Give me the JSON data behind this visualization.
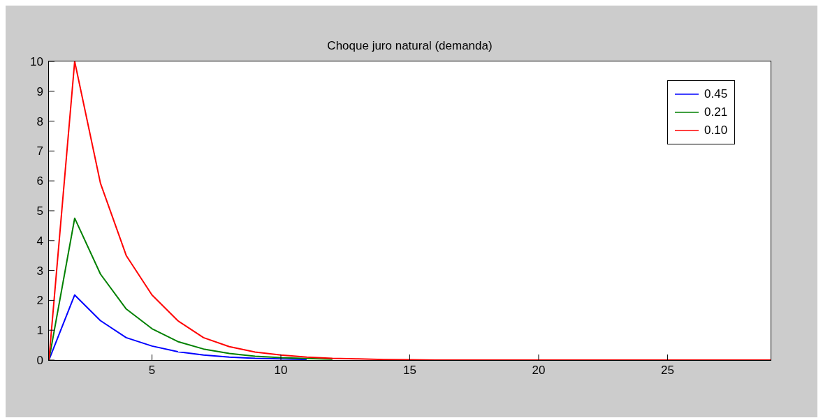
{
  "chart_data": {
    "type": "line",
    "title": "Choque juro natural (demanda)",
    "x": [
      1,
      2,
      3,
      4,
      5,
      6,
      7,
      8,
      9,
      10,
      11,
      12,
      13,
      14,
      15,
      16,
      17,
      18,
      19,
      20,
      21,
      22,
      23,
      24,
      25,
      26,
      27,
      28,
      29
    ],
    "series": [
      {
        "name": "0.45",
        "color": "#0000ff",
        "values": [
          0,
          2.18,
          1.32,
          0.75,
          0.47,
          0.28,
          0.17,
          0.1,
          0.06,
          0.04,
          0.02,
          null,
          null,
          null,
          null,
          null,
          null,
          null,
          null,
          null,
          null,
          null,
          null,
          null,
          null,
          null,
          null,
          null,
          null
        ]
      },
      {
        "name": "0.21",
        "color": "#008000",
        "values": [
          0,
          4.75,
          2.88,
          1.71,
          1.05,
          0.62,
          0.37,
          0.22,
          0.13,
          0.08,
          0.05,
          0.03,
          null,
          null,
          null,
          null,
          null,
          null,
          null,
          null,
          null,
          null,
          null,
          null,
          null,
          null,
          null,
          null,
          null
        ]
      },
      {
        "name": "0.10",
        "color": "#ff0000",
        "values": [
          0,
          10,
          5.92,
          3.5,
          2.18,
          1.32,
          0.75,
          0.45,
          0.27,
          0.17,
          0.1,
          0.06,
          0.04,
          0.02,
          0.01,
          0,
          0,
          0,
          0,
          0,
          0,
          0,
          0,
          0,
          0,
          0,
          0,
          0,
          0
        ]
      }
    ],
    "xlim": [
      1,
      29
    ],
    "xticks": [
      5,
      10,
      15,
      20,
      25
    ],
    "ylim": [
      0,
      10
    ],
    "yticks": [
      0,
      1,
      2,
      3,
      4,
      5,
      6,
      7,
      8,
      9,
      10
    ],
    "legend": "top right",
    "marker": "none",
    "line_style": "solid"
  }
}
